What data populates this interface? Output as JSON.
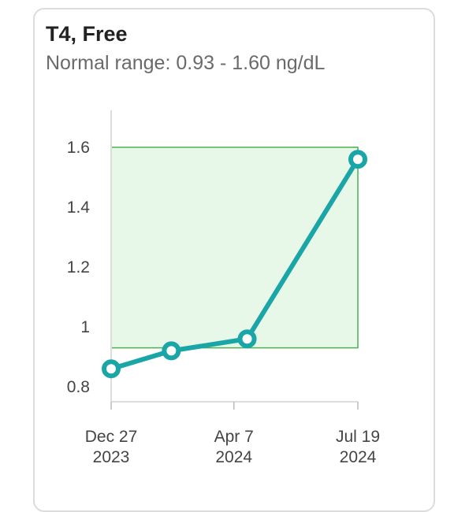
{
  "chart_data": {
    "type": "line",
    "title": "T4, Free",
    "subtitle": "Normal range: 0.93 - 1.60 ng/dL",
    "normal_range": [
      0.93,
      1.6
    ],
    "y_ticks": [
      0.8,
      1,
      1.2,
      1.4,
      1.6
    ],
    "y_tick_labels": [
      "0.8",
      "1",
      "1.2",
      "1.4",
      "1.6"
    ],
    "ylim": [
      0.75,
      1.75
    ],
    "x_ticks": [
      {
        "date": "2023-12-27",
        "line1": "Dec 27",
        "line2": "2023"
      },
      {
        "date": "2024-04-07",
        "line1": "Apr 7",
        "line2": "2024"
      },
      {
        "date": "2024-07-19",
        "line1": "Jul 19",
        "line2": "2024"
      }
    ],
    "xlim": [
      "2023-12-27",
      "2024-07-19"
    ],
    "points": [
      {
        "date": "2023-12-27",
        "value": 0.86
      },
      {
        "date": "2024-02-15",
        "value": 0.92
      },
      {
        "date": "2024-04-18",
        "value": 0.96
      },
      {
        "date": "2024-07-19",
        "value": 1.56
      }
    ],
    "colors": {
      "line": "#1aa6a6",
      "range_fill": "#e8f8e8",
      "range_border": "#4caf50",
      "axis": "#dddddd"
    }
  }
}
